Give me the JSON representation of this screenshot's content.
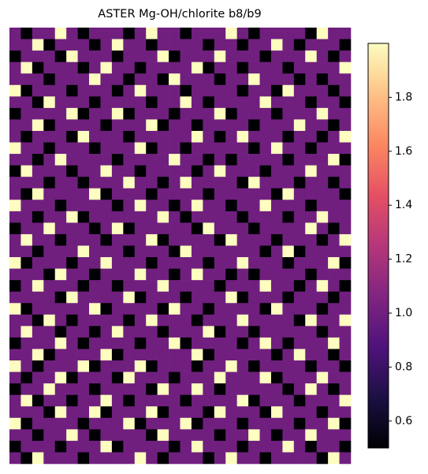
{
  "chart_data": {
    "type": "heatmap",
    "title": "ASTER Mg-OH/chlorite b8/b9",
    "colormap": "magma",
    "clim": [
      0.5,
      2.0
    ],
    "cticks": [
      0.6,
      0.8,
      {
        "value": 1.0,
        "label": "1.0"
      },
      1.2,
      1.4,
      1.6,
      1.8
    ],
    "values": [
      [
        1,
        0.5,
        1,
        1,
        2,
        1,
        0.5,
        1,
        1,
        1,
        0.5,
        1,
        2,
        1,
        1,
        0.5,
        1,
        1,
        1,
        2,
        1,
        0.5,
        1,
        1,
        1,
        1,
        0.5,
        2,
        1,
        1
      ],
      [
        1,
        1,
        2,
        0.5,
        1,
        1,
        1,
        0.5,
        1,
        2,
        1,
        1,
        0.5,
        1,
        1,
        1,
        1,
        0.5,
        1,
        1,
        0.5,
        1,
        1,
        2,
        1,
        0.5,
        1,
        1,
        1,
        0.5
      ],
      [
        0.5,
        1,
        1,
        1,
        0.5,
        2,
        1,
        1,
        1,
        0.5,
        1,
        1,
        1,
        2,
        0.5,
        1,
        1,
        1,
        2,
        1,
        1,
        1,
        0.5,
        1,
        1,
        1,
        2,
        1,
        0.5,
        1
      ],
      [
        1,
        2,
        0.5,
        1,
        1,
        1,
        0.5,
        1,
        2,
        1,
        1,
        0.5,
        1,
        1,
        1,
        1,
        2,
        0.5,
        1,
        1,
        0.5,
        1,
        1,
        1,
        0.5,
        1,
        1,
        1,
        1,
        2
      ],
      [
        1,
        1,
        1,
        0.5,
        1,
        1,
        1,
        2,
        1,
        1,
        0.5,
        1,
        1,
        0.5,
        2,
        1,
        1,
        1,
        0.5,
        1,
        1,
        2,
        1,
        1,
        1,
        0.5,
        1,
        0.5,
        1,
        1
      ],
      [
        2,
        0.5,
        1,
        1,
        1,
        0.5,
        1,
        1,
        1,
        0.5,
        1,
        2,
        1,
        1,
        1,
        0.5,
        1,
        1,
        1,
        1,
        0.5,
        1,
        1,
        0.5,
        2,
        1,
        1,
        1,
        0.5,
        1
      ],
      [
        1,
        1,
        0.5,
        2,
        1,
        1,
        1,
        0.5,
        1,
        1,
        1,
        1,
        0.5,
        1,
        1,
        2,
        1,
        0.5,
        1,
        1,
        1,
        1,
        2,
        1,
        1,
        1,
        0.5,
        1,
        1,
        0.5
      ],
      [
        0.5,
        1,
        1,
        1,
        1,
        2,
        0.5,
        1,
        1,
        2,
        0.5,
        1,
        1,
        1,
        0.5,
        1,
        1,
        1,
        2,
        0.5,
        1,
        1,
        1,
        0.5,
        1,
        1,
        1,
        2,
        1,
        1
      ],
      [
        1,
        1,
        2,
        0.5,
        1,
        1,
        1,
        1,
        0.5,
        1,
        1,
        1,
        2,
        0.5,
        1,
        1,
        0.5,
        1,
        1,
        1,
        1,
        0.5,
        1,
        1,
        1,
        2,
        1,
        1,
        0.5,
        1
      ],
      [
        1,
        0.5,
        1,
        1,
        1,
        0.5,
        2,
        1,
        1,
        1,
        0.5,
        1,
        1,
        1,
        1,
        1,
        2,
        1,
        0.5,
        1,
        2,
        1,
        1,
        1,
        0.5,
        1,
        1,
        0.5,
        1,
        2
      ],
      [
        2,
        1,
        1,
        0.5,
        1,
        1,
        1,
        0.5,
        1,
        1,
        1,
        2,
        0.5,
        1,
        1,
        0.5,
        1,
        1,
        1,
        1,
        1,
        0.5,
        1,
        2,
        1,
        1,
        0.5,
        1,
        1,
        1
      ],
      [
        1,
        1,
        0.5,
        1,
        2,
        1,
        1,
        1,
        1,
        0.5,
        1,
        1,
        1,
        1,
        2,
        1,
        1,
        0.5,
        1,
        0.5,
        1,
        1,
        1,
        1,
        0.5,
        1,
        1,
        1,
        2,
        0.5
      ],
      [
        0.5,
        2,
        1,
        1,
        1,
        0.5,
        1,
        1,
        2,
        1,
        1,
        0.5,
        1,
        1,
        1,
        1,
        0.5,
        1,
        2,
        1,
        1,
        1,
        0.5,
        1,
        1,
        1,
        2,
        1,
        1,
        1
      ],
      [
        1,
        1,
        1,
        0.5,
        1,
        1,
        0.5,
        1,
        1,
        1,
        2,
        1,
        1,
        0.5,
        1,
        2,
        1,
        1,
        1,
        1,
        0.5,
        2,
        1,
        1,
        1,
        0.5,
        1,
        1,
        0.5,
        1
      ],
      [
        1,
        0.5,
        2,
        1,
        1,
        1,
        1,
        2,
        0.5,
        1,
        1,
        1,
        0.5,
        1,
        1,
        1,
        1,
        0.5,
        1,
        1,
        1,
        1,
        1,
        0.5,
        2,
        1,
        1,
        1,
        1,
        0.5
      ],
      [
        2,
        1,
        1,
        1,
        0.5,
        1,
        1,
        1,
        1,
        0.5,
        1,
        2,
        1,
        1,
        0.5,
        1,
        2,
        1,
        1,
        0.5,
        1,
        1,
        2,
        1,
        1,
        1,
        0.5,
        1,
        1,
        1
      ],
      [
        1,
        1,
        0.5,
        1,
        1,
        2,
        0.5,
        1,
        1,
        1,
        1,
        1,
        1,
        2,
        1,
        0.5,
        1,
        1,
        1,
        1,
        0.5,
        1,
        1,
        1,
        0.5,
        1,
        1,
        2,
        1,
        1
      ],
      [
        0.5,
        1,
        1,
        2,
        1,
        1,
        1,
        0.5,
        1,
        2,
        0.5,
        1,
        1,
        1,
        1,
        1,
        0.5,
        2,
        1,
        1,
        1,
        0.5,
        1,
        1,
        1,
        1,
        2,
        1,
        0.5,
        1
      ],
      [
        1,
        2,
        1,
        1,
        0.5,
        1,
        1,
        1,
        0.5,
        1,
        1,
        1,
        2,
        0.5,
        1,
        1,
        1,
        1,
        0.5,
        2,
        1,
        1,
        1,
        0.5,
        1,
        1,
        1,
        0.5,
        1,
        2
      ],
      [
        1,
        1,
        0.5,
        1,
        1,
        1,
        2,
        1,
        1,
        1,
        0.5,
        1,
        1,
        1,
        0.5,
        2,
        1,
        1,
        1,
        1,
        1,
        1,
        0.5,
        1,
        2,
        0.5,
        1,
        1,
        1,
        1
      ],
      [
        2,
        0.5,
        1,
        1,
        1,
        0.5,
        1,
        1,
        2,
        1,
        1,
        1,
        0.5,
        1,
        1,
        1,
        1,
        0.5,
        1,
        1,
        2,
        1,
        1,
        1,
        0.5,
        1,
        1,
        1,
        2,
        0.5
      ],
      [
        1,
        1,
        1,
        0.5,
        2,
        1,
        1,
        0.5,
        1,
        1,
        1,
        2,
        1,
        1,
        0.5,
        1,
        2,
        1,
        1,
        0.5,
        1,
        0.5,
        1,
        1,
        1,
        1,
        0.5,
        1,
        1,
        1
      ],
      [
        0.5,
        1,
        2,
        1,
        1,
        1,
        0.5,
        1,
        1,
        0.5,
        1,
        1,
        1,
        2,
        1,
        1,
        1,
        1,
        0.5,
        1,
        1,
        1,
        2,
        1,
        1,
        0.5,
        1,
        2,
        1,
        0.5
      ],
      [
        1,
        1,
        1,
        1,
        0.5,
        2,
        1,
        1,
        1,
        1,
        2,
        0.5,
        1,
        1,
        1,
        0.5,
        1,
        1,
        1,
        2,
        0.5,
        1,
        1,
        1,
        0.5,
        1,
        1,
        1,
        0.5,
        1
      ],
      [
        2,
        0.5,
        1,
        1,
        1,
        1,
        1,
        2,
        0.5,
        1,
        1,
        1,
        1,
        0.5,
        2,
        1,
        1,
        0.5,
        1,
        1,
        1,
        1,
        0.5,
        2,
        1,
        1,
        1,
        0.5,
        1,
        1
      ],
      [
        1,
        1,
        0.5,
        2,
        1,
        0.5,
        1,
        1,
        1,
        1,
        0.5,
        1,
        2,
        1,
        1,
        1,
        0.5,
        1,
        1,
        1,
        2,
        1,
        1,
        1,
        1,
        0.5,
        2,
        1,
        1,
        2
      ],
      [
        1,
        2,
        1,
        1,
        0.5,
        1,
        1,
        0.5,
        1,
        2,
        1,
        1,
        1,
        0.5,
        1,
        1,
        1,
        2,
        0.5,
        1,
        1,
        0.5,
        1,
        1,
        1,
        1,
        1,
        0.5,
        1,
        1
      ],
      [
        0.5,
        1,
        1,
        1,
        2,
        1,
        0.5,
        1,
        1,
        1,
        1,
        0.5,
        1,
        1,
        2,
        0.5,
        1,
        1,
        1,
        1,
        0.5,
        1,
        2,
        1,
        0.5,
        1,
        1,
        1,
        2,
        1
      ],
      [
        1,
        1,
        2,
        0.5,
        1,
        1,
        1,
        1,
        2,
        0.5,
        1,
        1,
        1,
        1,
        1,
        1,
        2,
        0.5,
        1,
        1,
        1,
        1,
        1,
        0.5,
        1,
        2,
        1,
        1,
        0.5,
        1
      ],
      [
        2,
        1,
        0.5,
        1,
        1,
        1,
        2,
        0.5,
        1,
        1,
        1,
        2,
        0.5,
        1,
        1,
        1,
        0.5,
        1,
        1,
        2,
        1,
        0.5,
        1,
        1,
        1,
        1,
        0.5,
        1,
        1,
        0.5
      ],
      [
        1,
        0.5,
        1,
        1,
        2,
        0.5,
        1,
        1,
        1,
        0.5,
        2,
        1,
        1,
        1,
        0.5,
        1,
        1,
        1,
        2,
        1,
        1,
        1,
        2,
        0.5,
        1,
        1,
        1,
        2,
        1,
        1
      ],
      [
        0.5,
        1,
        1,
        2,
        1,
        1,
        1,
        0.5,
        1,
        1,
        1,
        1,
        0.5,
        2,
        1,
        1,
        2,
        1,
        0.5,
        1,
        1,
        1,
        1,
        1,
        0.5,
        1,
        2,
        1,
        0.5,
        1
      ],
      [
        1,
        2,
        0.5,
        1,
        1,
        0.5,
        1,
        1,
        2,
        1,
        0.5,
        1,
        1,
        1,
        1,
        0.5,
        1,
        1,
        1,
        1,
        2,
        0.5,
        1,
        1,
        1,
        0.5,
        1,
        1,
        1,
        2
      ],
      [
        1,
        1,
        1,
        0.5,
        2,
        1,
        1,
        2,
        0.5,
        1,
        1,
        1,
        2,
        0.5,
        1,
        1,
        1,
        0.5,
        2,
        1,
        1,
        1,
        0.5,
        2,
        1,
        1,
        1,
        0.5,
        1,
        1
      ],
      [
        2,
        0.5,
        1,
        1,
        1,
        1,
        0.5,
        1,
        1,
        1,
        2,
        0.5,
        1,
        1,
        1,
        2,
        0.5,
        1,
        1,
        1,
        0.5,
        1,
        1,
        1,
        1,
        0.5,
        1,
        1,
        2,
        0.5
      ],
      [
        1,
        1,
        0.5,
        1,
        1,
        2,
        1,
        0.5,
        1,
        1,
        1,
        1,
        0.5,
        2,
        1,
        1,
        1,
        1,
        0.5,
        1,
        1,
        2,
        1,
        0.5,
        1,
        1,
        2,
        1,
        1,
        1
      ],
      [
        0.5,
        1,
        1,
        1,
        0.5,
        1,
        1,
        1,
        2,
        0.5,
        1,
        1,
        1,
        1,
        0.5,
        1,
        2,
        1,
        1,
        1,
        0.5,
        1,
        1,
        1,
        2,
        1,
        0.5,
        1,
        1,
        0.5
      ],
      [
        1,
        0.5,
        2,
        1,
        1,
        1,
        0.5,
        1,
        1,
        1,
        1,
        2,
        1,
        0.5,
        1,
        1,
        1,
        0.5,
        1,
        2,
        1,
        1,
        0.5,
        1,
        1,
        1,
        1,
        0.5,
        2,
        1
      ]
    ]
  }
}
